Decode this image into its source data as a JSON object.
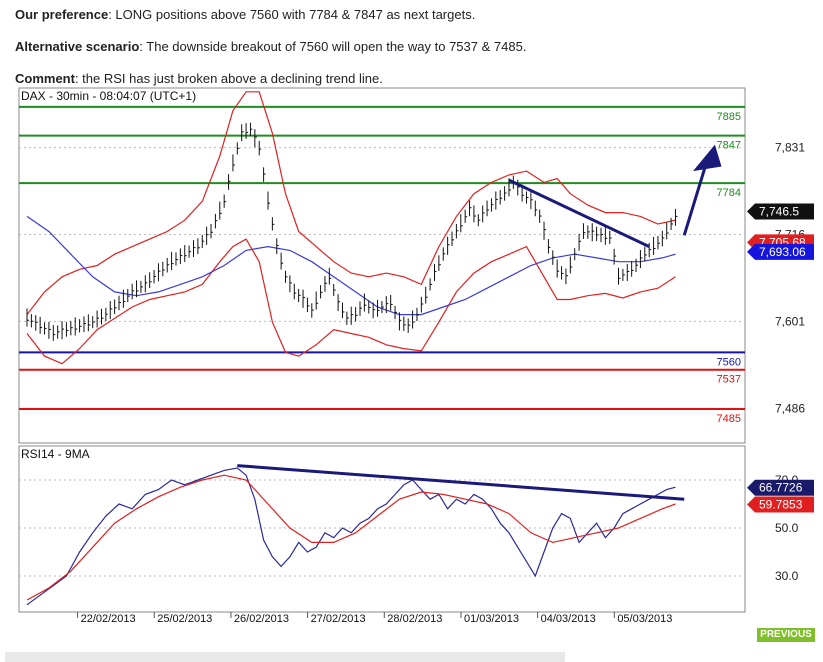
{
  "header": {
    "preference_label": "Our preference",
    "preference_text": ": LONG positions above 7560 with 7784 & 7847 as next targets.",
    "alternative_label": "Alternative scenario",
    "alternative_text": ": The downside breakout of 7560 will open the way to 7537 & 7485.",
    "comment_label": "Comment",
    "comment_text": ": the RSI has just broken above a declining trend line."
  },
  "footer": {
    "previous_label": "PREVIOUS"
  },
  "colors": {
    "green_level": "#1e8c1e",
    "blue_level": "#1515aa",
    "red_level": "#dd1111",
    "band": "#e02020",
    "ma": "#3b3bd6",
    "rsi": "#2a2a9a",
    "rsi_ma": "#e02020",
    "trend": "#1a1a7a"
  },
  "chart_data": [
    {
      "type": "line",
      "title": "DAX - 30min - 08:04:07 (UTC+1)",
      "y_ticks": [
        "7,831",
        "7,716",
        "7,601",
        "7,486"
      ],
      "y_tick_values": [
        7831,
        7716,
        7601,
        7486
      ],
      "ylim": [
        7440,
        7910
      ],
      "x_ticks": [
        "22/02/2013",
        "25/02/2013",
        "26/02/2013",
        "27/02/2013",
        "28/02/2013",
        "01/03/2013",
        "04/03/2013",
        "05/03/2013"
      ],
      "levels": [
        {
          "label": "7885",
          "value": 7885,
          "color": "green"
        },
        {
          "label": "7847",
          "value": 7847,
          "color": "green"
        },
        {
          "label": "7784",
          "value": 7784,
          "color": "green"
        },
        {
          "label": "7560",
          "value": 7560,
          "color": "blue"
        },
        {
          "label": "7537",
          "value": 7537,
          "color": "red"
        },
        {
          "label": "7485",
          "value": 7485,
          "color": "red"
        }
      ],
      "price_tags": [
        {
          "label": "7,746.5",
          "value": 7746.5,
          "style": "last"
        },
        {
          "label": "7,705.68",
          "value": 7705.68,
          "style": "band"
        },
        {
          "label": "7,693.06",
          "value": 7693.06,
          "style": "ma"
        }
      ],
      "price_series": [
        [
          0,
          7605
        ],
        [
          3,
          7595
        ],
        [
          6,
          7585
        ],
        [
          9,
          7590
        ],
        [
          12,
          7595
        ],
        [
          15,
          7600
        ],
        [
          18,
          7610
        ],
        [
          21,
          7625
        ],
        [
          24,
          7640
        ],
        [
          27,
          7650
        ],
        [
          30,
          7665
        ],
        [
          33,
          7680
        ],
        [
          36,
          7690
        ],
        [
          39,
          7700
        ],
        [
          42,
          7720
        ],
        [
          45,
          7760
        ],
        [
          47,
          7810
        ],
        [
          49,
          7850
        ],
        [
          51,
          7855
        ],
        [
          53,
          7830
        ],
        [
          55,
          7760
        ],
        [
          57,
          7700
        ],
        [
          59,
          7660
        ],
        [
          61,
          7640
        ],
        [
          63,
          7630
        ],
        [
          65,
          7615
        ],
        [
          67,
          7640
        ],
        [
          69,
          7660
        ],
        [
          71,
          7625
        ],
        [
          73,
          7605
        ],
        [
          75,
          7610
        ],
        [
          77,
          7625
        ],
        [
          79,
          7615
        ],
        [
          81,
          7620
        ],
        [
          83,
          7625
        ],
        [
          85,
          7600
        ],
        [
          87,
          7595
        ],
        [
          89,
          7610
        ],
        [
          91,
          7635
        ],
        [
          93,
          7665
        ],
        [
          95,
          7690
        ],
        [
          97,
          7710
        ],
        [
          99,
          7730
        ],
        [
          101,
          7750
        ],
        [
          103,
          7735
        ],
        [
          105,
          7750
        ],
        [
          107,
          7760
        ],
        [
          109,
          7770
        ],
        [
          111,
          7785
        ],
        [
          113,
          7770
        ],
        [
          115,
          7760
        ],
        [
          117,
          7740
        ],
        [
          119,
          7700
        ],
        [
          121,
          7670
        ],
        [
          123,
          7660
        ],
        [
          125,
          7690
        ],
        [
          127,
          7720
        ],
        [
          129,
          7718
        ],
        [
          131,
          7715
        ],
        [
          133,
          7712
        ],
        [
          135,
          7660
        ],
        [
          137,
          7665
        ],
        [
          139,
          7675
        ],
        [
          141,
          7690
        ],
        [
          143,
          7700
        ],
        [
          145,
          7710
        ],
        [
          147,
          7730
        ],
        [
          149,
          7746
        ]
      ],
      "upper_band": [
        [
          0,
          7610
        ],
        [
          4,
          7640
        ],
        [
          8,
          7660
        ],
        [
          12,
          7670
        ],
        [
          16,
          7675
        ],
        [
          20,
          7690
        ],
        [
          24,
          7700
        ],
        [
          28,
          7710
        ],
        [
          32,
          7720
        ],
        [
          36,
          7735
        ],
        [
          40,
          7760
        ],
        [
          44,
          7820
        ],
        [
          47,
          7880
        ],
        [
          50,
          7905
        ],
        [
          53,
          7905
        ],
        [
          56,
          7850
        ],
        [
          59,
          7770
        ],
        [
          62,
          7720
        ],
        [
          66,
          7700
        ],
        [
          70,
          7680
        ],
        [
          74,
          7665
        ],
        [
          78,
          7660
        ],
        [
          82,
          7665
        ],
        [
          86,
          7660
        ],
        [
          90,
          7650
        ],
        [
          94,
          7700
        ],
        [
          98,
          7740
        ],
        [
          102,
          7770
        ],
        [
          106,
          7785
        ],
        [
          110,
          7795
        ],
        [
          114,
          7800
        ],
        [
          118,
          7785
        ],
        [
          121,
          7790
        ],
        [
          124,
          7770
        ],
        [
          128,
          7755
        ],
        [
          132,
          7745
        ],
        [
          136,
          7745
        ],
        [
          140,
          7740
        ],
        [
          144,
          7730
        ],
        [
          148,
          7735
        ]
      ],
      "lower_band": [
        [
          0,
          7585
        ],
        [
          4,
          7555
        ],
        [
          8,
          7545
        ],
        [
          12,
          7565
        ],
        [
          16,
          7590
        ],
        [
          20,
          7605
        ],
        [
          24,
          7620
        ],
        [
          28,
          7630
        ],
        [
          32,
          7635
        ],
        [
          36,
          7640
        ],
        [
          40,
          7650
        ],
        [
          44,
          7680
        ],
        [
          47,
          7700
        ],
        [
          50,
          7710
        ],
        [
          53,
          7680
        ],
        [
          56,
          7600
        ],
        [
          59,
          7560
        ],
        [
          62,
          7555
        ],
        [
          66,
          7570
        ],
        [
          70,
          7590
        ],
        [
          74,
          7585
        ],
        [
          78,
          7580
        ],
        [
          82,
          7570
        ],
        [
          86,
          7565
        ],
        [
          90,
          7562
        ],
        [
          94,
          7600
        ],
        [
          98,
          7640
        ],
        [
          102,
          7665
        ],
        [
          106,
          7680
        ],
        [
          110,
          7690
        ],
        [
          114,
          7700
        ],
        [
          118,
          7660
        ],
        [
          121,
          7630
        ],
        [
          124,
          7630
        ],
        [
          128,
          7635
        ],
        [
          132,
          7638
        ],
        [
          136,
          7632
        ],
        [
          140,
          7640
        ],
        [
          144,
          7645
        ],
        [
          148,
          7660
        ]
      ],
      "mid_ma": [
        [
          0,
          7740
        ],
        [
          5,
          7720
        ],
        [
          10,
          7690
        ],
        [
          15,
          7660
        ],
        [
          20,
          7640
        ],
        [
          25,
          7635
        ],
        [
          30,
          7640
        ],
        [
          35,
          7650
        ],
        [
          40,
          7660
        ],
        [
          45,
          7675
        ],
        [
          50,
          7695
        ],
        [
          55,
          7700
        ],
        [
          60,
          7695
        ],
        [
          65,
          7680
        ],
        [
          70,
          7660
        ],
        [
          75,
          7640
        ],
        [
          80,
          7620
        ],
        [
          85,
          7610
        ],
        [
          90,
          7610
        ],
        [
          95,
          7620
        ],
        [
          100,
          7630
        ],
        [
          105,
          7645
        ],
        [
          110,
          7660
        ],
        [
          115,
          7675
        ],
        [
          120,
          7685
        ],
        [
          125,
          7690
        ],
        [
          130,
          7685
        ],
        [
          135,
          7680
        ],
        [
          140,
          7680
        ],
        [
          145,
          7685
        ],
        [
          148,
          7690
        ]
      ]
    },
    {
      "type": "line",
      "title": "RSI14 - 9MA",
      "y_ticks": [
        "70.0",
        "50.0",
        "30.0"
      ],
      "y_tick_values": [
        70,
        50,
        30
      ],
      "ylim": [
        15,
        80
      ],
      "price_tags": [
        {
          "label": "66.7726",
          "value": 66.7726,
          "style": "rsi"
        },
        {
          "label": "59.7853",
          "value": 59.7853,
          "style": "rsima"
        }
      ],
      "rsi_series": [
        [
          0,
          18
        ],
        [
          3,
          22
        ],
        [
          6,
          26
        ],
        [
          9,
          30
        ],
        [
          12,
          40
        ],
        [
          15,
          48
        ],
        [
          18,
          55
        ],
        [
          21,
          60
        ],
        [
          24,
          58
        ],
        [
          27,
          64
        ],
        [
          30,
          66
        ],
        [
          33,
          70
        ],
        [
          36,
          68
        ],
        [
          39,
          70
        ],
        [
          42,
          72
        ],
        [
          45,
          74
        ],
        [
          48,
          75
        ],
        [
          50,
          72
        ],
        [
          52,
          62
        ],
        [
          54,
          45
        ],
        [
          56,
          38
        ],
        [
          58,
          34
        ],
        [
          60,
          38
        ],
        [
          62,
          44
        ],
        [
          64,
          40
        ],
        [
          66,
          42
        ],
        [
          68,
          48
        ],
        [
          70,
          46
        ],
        [
          72,
          50
        ],
        [
          74,
          48
        ],
        [
          76,
          52
        ],
        [
          78,
          54
        ],
        [
          80,
          58
        ],
        [
          82,
          60
        ],
        [
          84,
          64
        ],
        [
          86,
          68
        ],
        [
          88,
          70
        ],
        [
          90,
          66
        ],
        [
          92,
          62
        ],
        [
          94,
          64
        ],
        [
          96,
          58
        ],
        [
          98,
          62
        ],
        [
          100,
          60
        ],
        [
          102,
          64
        ],
        [
          104,
          62
        ],
        [
          106,
          58
        ],
        [
          108,
          52
        ],
        [
          110,
          48
        ],
        [
          112,
          42
        ],
        [
          114,
          36
        ],
        [
          116,
          30
        ],
        [
          118,
          40
        ],
        [
          120,
          50
        ],
        [
          122,
          56
        ],
        [
          124,
          54
        ],
        [
          126,
          44
        ],
        [
          128,
          48
        ],
        [
          130,
          52
        ],
        [
          132,
          46
        ],
        [
          134,
          50
        ],
        [
          136,
          56
        ],
        [
          138,
          58
        ],
        [
          140,
          60
        ],
        [
          142,
          62
        ],
        [
          144,
          64
        ],
        [
          146,
          66
        ],
        [
          148,
          67
        ]
      ],
      "rsi_ma": [
        [
          0,
          20
        ],
        [
          5,
          25
        ],
        [
          10,
          32
        ],
        [
          15,
          42
        ],
        [
          20,
          52
        ],
        [
          25,
          58
        ],
        [
          30,
          63
        ],
        [
          35,
          67
        ],
        [
          40,
          70
        ],
        [
          45,
          72
        ],
        [
          50,
          70
        ],
        [
          55,
          60
        ],
        [
          60,
          50
        ],
        [
          65,
          44
        ],
        [
          70,
          44
        ],
        [
          75,
          48
        ],
        [
          80,
          55
        ],
        [
          85,
          62
        ],
        [
          90,
          65
        ],
        [
          95,
          64
        ],
        [
          100,
          62
        ],
        [
          105,
          60
        ],
        [
          110,
          56
        ],
        [
          115,
          48
        ],
        [
          120,
          44
        ],
        [
          125,
          46
        ],
        [
          130,
          48
        ],
        [
          135,
          50
        ],
        [
          140,
          54
        ],
        [
          145,
          58
        ],
        [
          148,
          60
        ]
      ]
    }
  ]
}
